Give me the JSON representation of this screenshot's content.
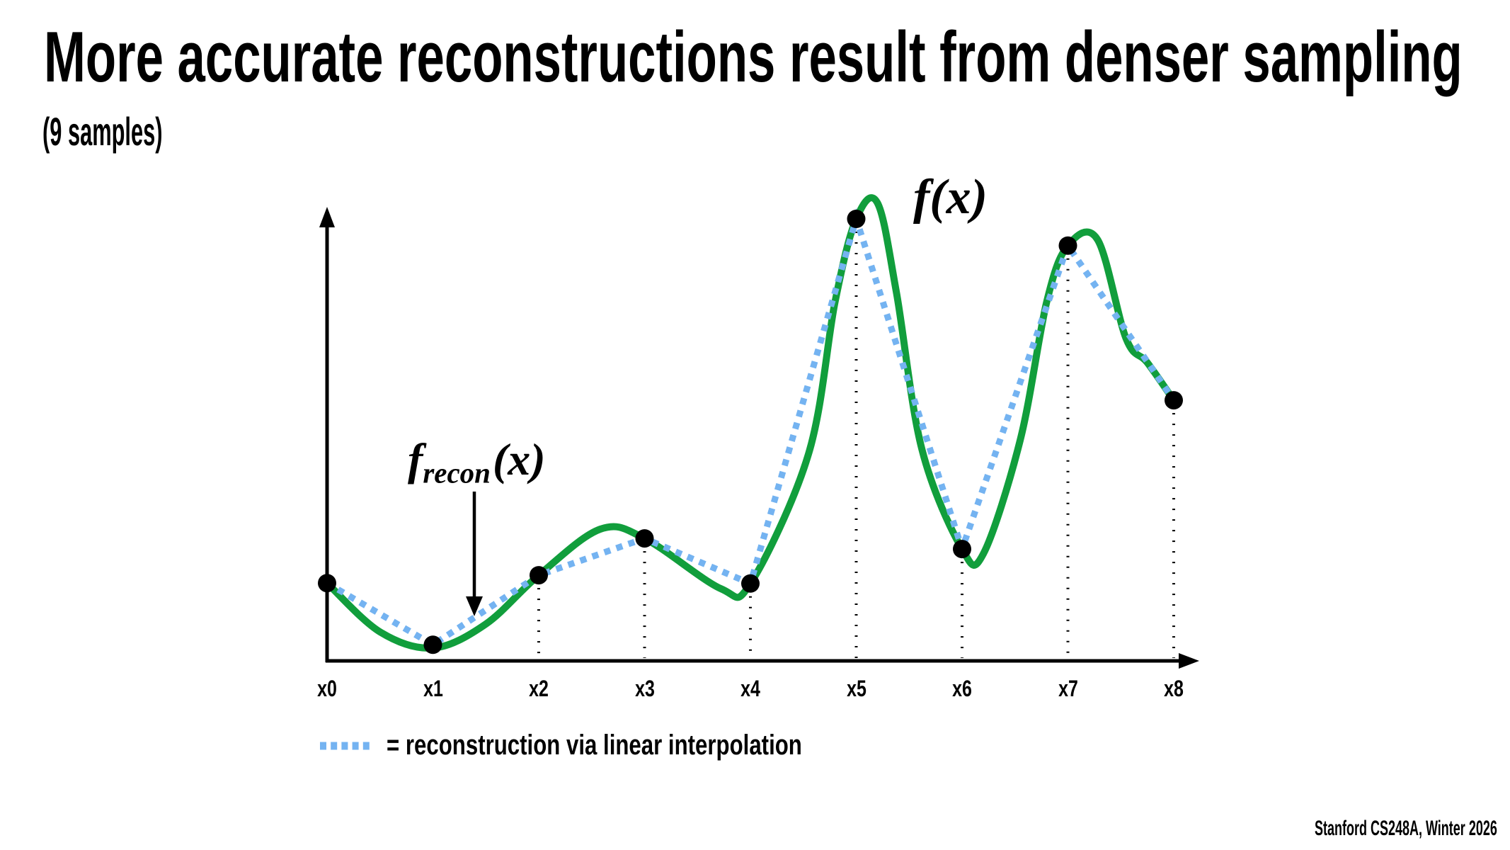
{
  "slide": {
    "title": "More accurate reconstructions result from denser sampling",
    "subtitle": "(9 samples)",
    "footer": "Stanford CS248A, Winter 2026"
  },
  "figure": {
    "fx_label": "f(x)",
    "frecon": {
      "f": "f",
      "sub": "recon",
      "args": "(x)"
    },
    "legend_text": "= reconstruction via linear interpolation"
  },
  "colors": {
    "signal_green": "#119e3c",
    "recon_blue": "#74b3f1",
    "ink_black": "#000000"
  },
  "chart_data": {
    "type": "line",
    "title": "More accurate reconstructions result from denser sampling (9 samples)",
    "categories": [
      "x0",
      "x1",
      "x2",
      "x3",
      "x4",
      "x5",
      "x6",
      "x7",
      "x8"
    ],
    "samples_normalized": [
      0.169,
      0.035,
      0.186,
      0.266,
      0.168,
      0.96,
      0.243,
      0.902,
      0.566
    ],
    "series": [
      {
        "name": "f(x)",
        "style": "smooth-solid",
        "color": "#119e3c",
        "points": [
          [
            0,
            0.169
          ],
          [
            0.5,
            0.063
          ],
          [
            1,
            0.028
          ],
          [
            1.5,
            0.08
          ],
          [
            2,
            0.186
          ],
          [
            2.58,
            0.286
          ],
          [
            3,
            0.266
          ],
          [
            3.72,
            0.157
          ],
          [
            4,
            0.168
          ],
          [
            4.55,
            0.45
          ],
          [
            4.8,
            0.78
          ],
          [
            5,
            0.96
          ],
          [
            5.2,
            0.995
          ],
          [
            5.38,
            0.8
          ],
          [
            5.62,
            0.46
          ],
          [
            6,
            0.243
          ],
          [
            6.2,
            0.232
          ],
          [
            6.55,
            0.48
          ],
          [
            6.8,
            0.78
          ],
          [
            7,
            0.902
          ],
          [
            7.28,
            0.915
          ],
          [
            7.55,
            0.7
          ],
          [
            7.75,
            0.648
          ],
          [
            8,
            0.566
          ]
        ]
      },
      {
        "name": "reconstruction via linear interpolation",
        "style": "dashed-linear",
        "color": "#74b3f1",
        "points": [
          [
            0,
            0.169
          ],
          [
            1,
            0.035
          ],
          [
            2,
            0.186
          ],
          [
            3,
            0.266
          ],
          [
            4,
            0.168
          ],
          [
            5,
            0.96
          ],
          [
            6,
            0.243
          ],
          [
            7,
            0.902
          ],
          [
            8,
            0.566
          ]
        ]
      }
    ],
    "sample_marker_color": "#000000",
    "dropline_categories": [
      "x2",
      "x3",
      "x4",
      "x5",
      "x6",
      "x7",
      "x8"
    ],
    "axes": {
      "x_arrow": true,
      "y_arrow": true,
      "y_ticks": "none",
      "grid": false
    },
    "legend_position": "bottom-left"
  }
}
